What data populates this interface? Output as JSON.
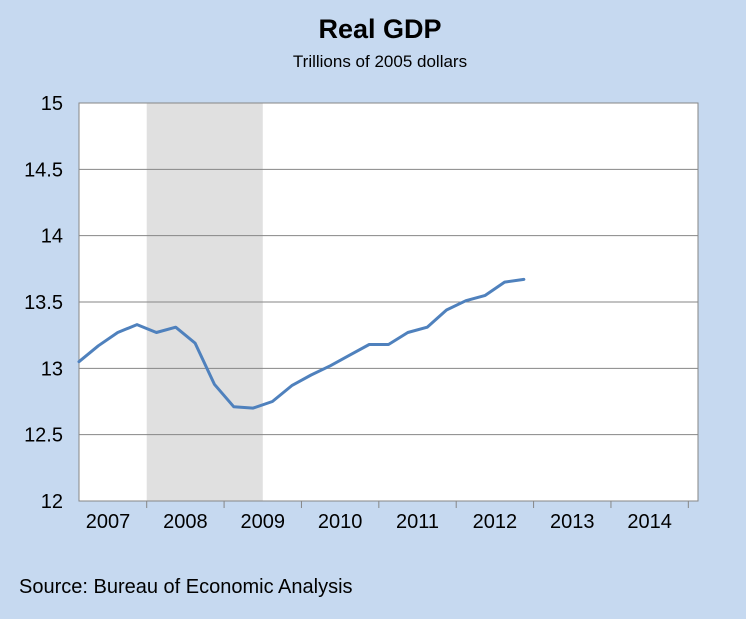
{
  "chart_data": {
    "type": "line",
    "title": "Real GDP",
    "subtitle": "Trillions of 2005 dollars",
    "ylim": [
      12,
      15
    ],
    "yticks": [
      12,
      12.5,
      13,
      13.5,
      14,
      14.5,
      15
    ],
    "ytick_labels": [
      "12",
      "12.5",
      "13",
      "13.5",
      "14",
      "14.5",
      "15"
    ],
    "xlim": [
      2006.625,
      2014.625
    ],
    "xtick_labels": [
      "2007",
      "2008",
      "2009",
      "2010",
      "2011",
      "2012",
      "2013",
      "2014"
    ],
    "xtick_positions": [
      2007,
      2008,
      2009,
      2010,
      2011,
      2012,
      2013,
      2014
    ],
    "grid": true,
    "recession_shading": {
      "start": 2007.5,
      "end": 2009.0,
      "color": "#e0e0e0"
    },
    "series": [
      {
        "color": "#4f81bd",
        "x": [
          2006.625,
          2006.875,
          2007.125,
          2007.375,
          2007.625,
          2007.875,
          2008.125,
          2008.375,
          2008.625,
          2008.875,
          2009.125,
          2009.375,
          2009.625,
          2009.875,
          2010.125,
          2010.375,
          2010.625,
          2010.875,
          2011.125,
          2011.375,
          2011.625,
          2011.875,
          2012.125,
          2012.375
        ],
        "values": [
          13.05,
          13.17,
          13.27,
          13.33,
          13.27,
          13.31,
          13.19,
          12.88,
          12.71,
          12.7,
          12.75,
          12.87,
          12.95,
          13.02,
          13.1,
          13.18,
          13.18,
          13.27,
          13.31,
          13.44,
          13.51,
          13.55,
          13.65,
          13.67
        ]
      }
    ]
  },
  "source": "Source: Bureau of Economic Analysis"
}
